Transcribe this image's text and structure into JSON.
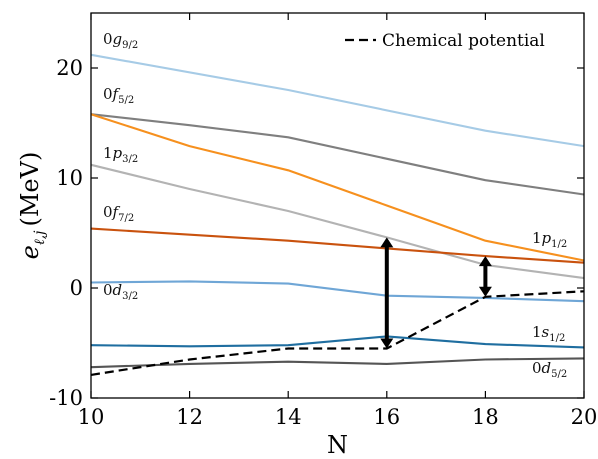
{
  "chart_data": {
    "type": "line",
    "xlabel": "N",
    "ylabel": {
      "base": "e",
      "sub": "ℓ,j",
      "unit": "(MeV)"
    },
    "xlim": [
      10,
      20
    ],
    "ylim": [
      -10,
      25
    ],
    "xticks": [
      "10",
      "12",
      "14",
      "16",
      "18",
      "20"
    ],
    "yticks": [
      "-10",
      "0",
      "10",
      "20"
    ],
    "grid": false,
    "legend": {
      "position": "top-right",
      "entries": [
        {
          "label": "Chemical potential",
          "style": "dashed",
          "color": "#000000"
        }
      ]
    },
    "series": [
      {
        "name": "0g9/2",
        "label_main": "0g",
        "label_sub": "9/2",
        "color": "#a6cbe6",
        "x": [
          10,
          14,
          18,
          20
        ],
        "y": [
          21.2,
          18.0,
          14.3,
          12.9
        ]
      },
      {
        "name": "0f5/2",
        "label_main": "0f",
        "label_sub": "5/2",
        "color": "#7f7f7f",
        "x": [
          10,
          12,
          14,
          18,
          20
        ],
        "y": [
          15.8,
          14.8,
          13.7,
          9.8,
          8.5
        ]
      },
      {
        "name": "0f5/2 (orange)",
        "label_main": "",
        "label_sub": "",
        "color": "#f6901e",
        "x": [
          10,
          12,
          14,
          16,
          18,
          20
        ],
        "y": [
          15.8,
          12.9,
          10.7,
          7.5,
          4.3,
          2.5
        ]
      },
      {
        "name": "1p3/2",
        "label_main": "1p",
        "label_sub": "3/2",
        "color": "#b3b3b3",
        "x": [
          10,
          12,
          14,
          16,
          18,
          20
        ],
        "y": [
          11.2,
          9.0,
          7.0,
          4.6,
          2.1,
          0.9
        ]
      },
      {
        "name": "0f7/2",
        "label_main": "0f",
        "label_sub": "7/2",
        "color": "#c9520e",
        "x": [
          10,
          14,
          16,
          18,
          20
        ],
        "y": [
          5.4,
          4.3,
          3.6,
          2.9,
          2.3
        ]
      },
      {
        "name": "1p1/2",
        "label_main": "1p",
        "label_sub": "1/2",
        "color": "#b3b3b3",
        "x": [],
        "y": []
      },
      {
        "name": "0d3/2",
        "label_main": "0d",
        "label_sub": "3/2",
        "color": "#6fa6d6",
        "x": [
          10,
          12,
          14,
          16,
          18,
          20
        ],
        "y": [
          0.5,
          0.6,
          0.4,
          -0.7,
          -0.9,
          -1.2
        ]
      },
      {
        "name": "1s1/2",
        "label_main": "1s",
        "label_sub": "1/2",
        "color": "#1f6ea0",
        "x": [
          10,
          12,
          14,
          16,
          18,
          20
        ],
        "y": [
          -5.2,
          -5.3,
          -5.2,
          -4.4,
          -5.1,
          -5.4
        ]
      },
      {
        "name": "0d5/2",
        "label_main": "0d",
        "label_sub": "5/2",
        "color": "#555555",
        "x": [
          10,
          12,
          14,
          16,
          18,
          20
        ],
        "y": [
          -7.2,
          -6.9,
          -6.7,
          -6.9,
          -6.5,
          -6.4
        ]
      }
    ],
    "chemical_potential": {
      "x": [
        10,
        12,
        14,
        16,
        18,
        20
      ],
      "y": [
        -7.9,
        -6.5,
        -5.5,
        -5.5,
        -0.8,
        -0.3
      ]
    },
    "gaps": [
      {
        "x": 16,
        "from": -5.5,
        "to": 4.6
      },
      {
        "x": 18,
        "from": -0.8,
        "to": 2.9
      }
    ]
  }
}
